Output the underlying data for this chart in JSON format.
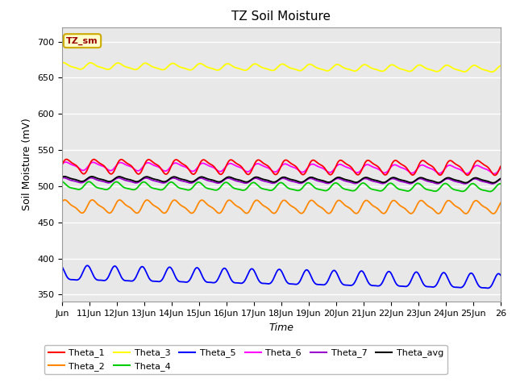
{
  "title": "TZ Soil Moisture",
  "xlabel": "Time",
  "ylabel": "Soil Moisture (mV)",
  "ylim": [
    340,
    720
  ],
  "yticks": [
    350,
    400,
    450,
    500,
    550,
    600,
    650,
    700
  ],
  "n_points": 480,
  "series": {
    "Theta_1": {
      "color": "#ff0000",
      "base": 528,
      "amplitude": 9,
      "trend": -2.0,
      "freq": 1.0
    },
    "Theta_2": {
      "color": "#ff8800",
      "base": 472,
      "amplitude": 8,
      "trend": -1.0,
      "freq": 1.0
    },
    "Theta_3": {
      "color": "#ffff00",
      "base": 666,
      "amplitude": 4,
      "trend": -4.0,
      "freq": 1.0
    },
    "Theta_4": {
      "color": "#00cc00",
      "base": 500,
      "amplitude": 5,
      "trend": -3.0,
      "freq": 1.0
    },
    "Theta_5": {
      "color": "#0000ff",
      "base": 378,
      "amplitude": 10,
      "trend": -12.0,
      "freq": 1.0
    },
    "Theta_6": {
      "color": "#ff00ff",
      "base": 528,
      "amplitude": 5,
      "trend": -5.0,
      "freq": 1.0
    },
    "Theta_7": {
      "color": "#9900cc",
      "base": 508,
      "amplitude": 3,
      "trend": -1.5,
      "freq": 1.0
    },
    "Theta_avg": {
      "color": "#000000",
      "base": 510,
      "amplitude": 3,
      "trend": -2.0,
      "freq": 1.0
    }
  },
  "x_tick_labels": [
    "Jun",
    "11Jun",
    "12Jun",
    "13Jun",
    "14Jun",
    "15Jun",
    "16Jun",
    "17Jun",
    "18Jun",
    "19Jun",
    "20Jun",
    "21Jun",
    "22Jun",
    "23Jun",
    "24Jun",
    "25Jun",
    "26"
  ],
  "background_color": "#e8e8e8",
  "plot_bg_color": "#e8e8e8",
  "legend_box_facecolor": "#ffffcc",
  "legend_box_edgecolor": "#ccaa00",
  "title_fontsize": 11,
  "axis_label_fontsize": 9,
  "tick_fontsize": 8,
  "legend_fontsize": 8
}
